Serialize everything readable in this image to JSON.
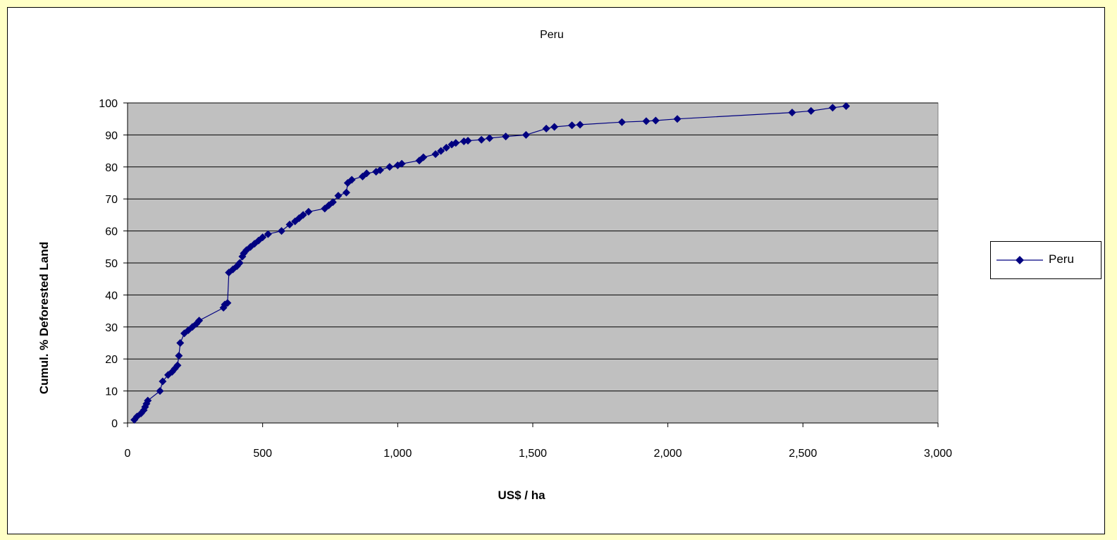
{
  "chart_data": {
    "type": "scatter",
    "title": "Peru",
    "xlabel": "US$ / ha",
    "ylabel": "Cumul. % Deforested Land",
    "xlim": [
      0,
      3000
    ],
    "ylim": [
      0,
      100
    ],
    "x_ticks": [
      0,
      500,
      1000,
      1500,
      2000,
      2500,
      3000
    ],
    "x_tick_labels": [
      "0",
      "500",
      "1,000",
      "1,500",
      "2,000",
      "2,500",
      "3,000"
    ],
    "y_ticks": [
      0,
      10,
      20,
      30,
      40,
      50,
      60,
      70,
      80,
      90,
      100
    ],
    "y_tick_labels": [
      "0",
      "10",
      "20",
      "30",
      "40",
      "50",
      "60",
      "70",
      "80",
      "90",
      "100"
    ],
    "grid": "horizontal",
    "legend": "right",
    "colors": {
      "series": "#000080",
      "plot_bg": "#c0c0c0",
      "page_bg": "#ffffc6"
    },
    "series": [
      {
        "name": "Peru",
        "marker": "diamond",
        "line": true,
        "points": [
          [
            25,
            1
          ],
          [
            35,
            2
          ],
          [
            50,
            3
          ],
          [
            60,
            4
          ],
          [
            65,
            5
          ],
          [
            70,
            6
          ],
          [
            75,
            7
          ],
          [
            120,
            10
          ],
          [
            130,
            13
          ],
          [
            150,
            15
          ],
          [
            165,
            16
          ],
          [
            175,
            17
          ],
          [
            185,
            18
          ],
          [
            190,
            21
          ],
          [
            195,
            25
          ],
          [
            210,
            28
          ],
          [
            225,
            29
          ],
          [
            240,
            30
          ],
          [
            255,
            31
          ],
          [
            265,
            32
          ],
          [
            355,
            36
          ],
          [
            360,
            37
          ],
          [
            370,
            37.5
          ],
          [
            375,
            47
          ],
          [
            390,
            48
          ],
          [
            405,
            49
          ],
          [
            415,
            50
          ],
          [
            425,
            52
          ],
          [
            430,
            53
          ],
          [
            440,
            54
          ],
          [
            455,
            55
          ],
          [
            470,
            56
          ],
          [
            485,
            57
          ],
          [
            500,
            58
          ],
          [
            520,
            59
          ],
          [
            570,
            60
          ],
          [
            600,
            62
          ],
          [
            620,
            63
          ],
          [
            635,
            64
          ],
          [
            650,
            65
          ],
          [
            670,
            66
          ],
          [
            730,
            67
          ],
          [
            745,
            68
          ],
          [
            760,
            69
          ],
          [
            780,
            71
          ],
          [
            810,
            72
          ],
          [
            815,
            75
          ],
          [
            830,
            76
          ],
          [
            870,
            77
          ],
          [
            885,
            78
          ],
          [
            920,
            78.5
          ],
          [
            935,
            79
          ],
          [
            970,
            80
          ],
          [
            1000,
            80.5
          ],
          [
            1015,
            81
          ],
          [
            1080,
            82
          ],
          [
            1095,
            83
          ],
          [
            1140,
            84
          ],
          [
            1160,
            85
          ],
          [
            1180,
            86
          ],
          [
            1200,
            87
          ],
          [
            1215,
            87.5
          ],
          [
            1245,
            88
          ],
          [
            1260,
            88.2
          ],
          [
            1310,
            88.5
          ],
          [
            1340,
            89
          ],
          [
            1400,
            89.5
          ],
          [
            1475,
            90
          ],
          [
            1550,
            92
          ],
          [
            1580,
            92.5
          ],
          [
            1645,
            93
          ],
          [
            1675,
            93.2
          ],
          [
            1830,
            94
          ],
          [
            1920,
            94.3
          ],
          [
            1955,
            94.5
          ],
          [
            2035,
            95
          ],
          [
            2460,
            97
          ],
          [
            2530,
            97.5
          ],
          [
            2610,
            98.5
          ],
          [
            2660,
            99
          ]
        ]
      }
    ]
  }
}
